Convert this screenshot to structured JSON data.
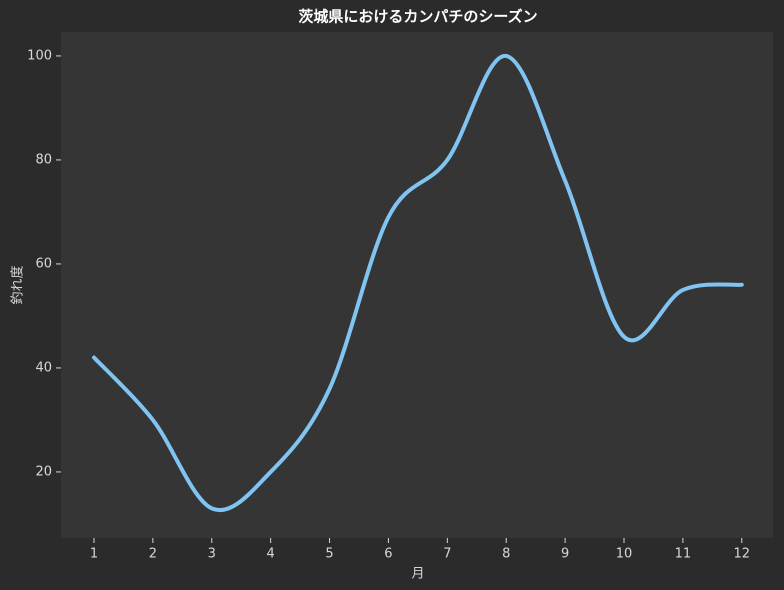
{
  "chart_data": {
    "type": "line",
    "title": "茨城県におけるカンパチのシーズン",
    "x_label": "月",
    "y_label": "釣れ度",
    "x": [
      1,
      2,
      3,
      4,
      5,
      6,
      7,
      8,
      9,
      10,
      11,
      12
    ],
    "series": [
      {
        "name": "釣れ度",
        "color": "#80c4f2",
        "values": [
          42,
          30,
          13,
          20,
          36,
          69,
          80,
          100,
          76,
          46,
          55,
          56
        ]
      }
    ],
    "xlim": [
      0.44,
      12.53
    ],
    "xticks": [
      1,
      2,
      3,
      4,
      5,
      6,
      7,
      8,
      9,
      10,
      11,
      12
    ],
    "ylim": [
      7.3,
      104.6
    ],
    "yticks": [
      20,
      40,
      60,
      80,
      100
    ],
    "grid": false
  }
}
